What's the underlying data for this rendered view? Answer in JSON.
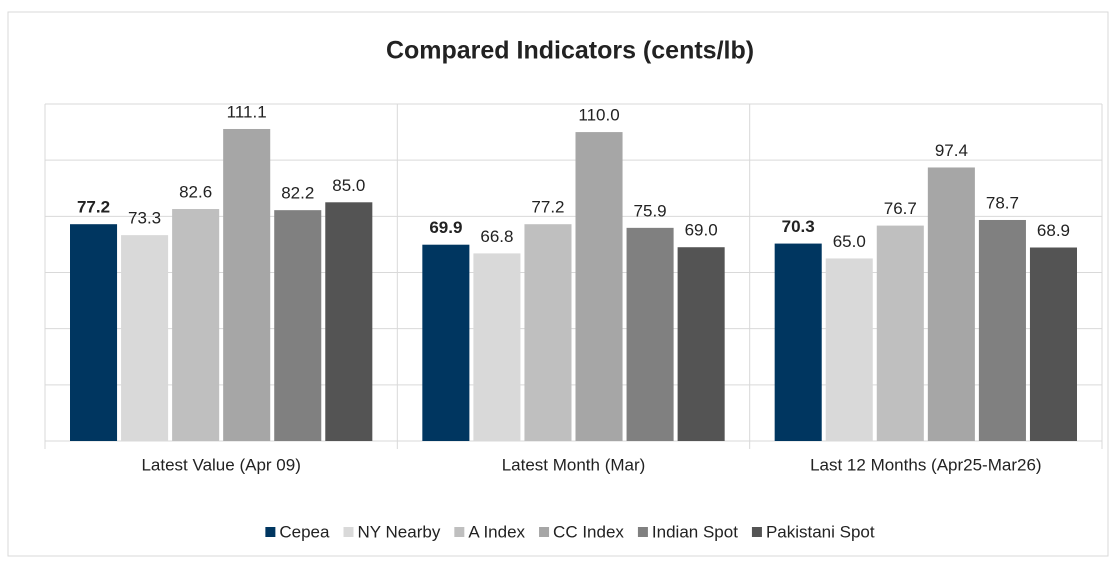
{
  "chart_data": {
    "type": "bar",
    "title": "Compared Indicators (cents/lb)",
    "categories": [
      "Latest Value (Apr 09)",
      "Latest Month (Mar)",
      "Last 12 Months (Apr25-Mar26)"
    ],
    "series": [
      {
        "name": "Cepea",
        "color": "#003660",
        "bold": true,
        "values": [
          77.2,
          69.9,
          70.3
        ],
        "value_labels": [
          "77.2",
          "69.9",
          "70.3"
        ]
      },
      {
        "name": "NY Nearby",
        "color": "#d9d9d9",
        "values": [
          73.3,
          66.8,
          65.0
        ],
        "value_labels": [
          "73.3",
          "66.8",
          "65.0"
        ]
      },
      {
        "name": "A Index",
        "color": "#bfbfbf",
        "values": [
          82.6,
          77.2,
          76.7
        ],
        "value_labels": [
          "82.6",
          "77.2",
          "76.7"
        ]
      },
      {
        "name": "CC Index",
        "color": "#a6a6a6",
        "values": [
          111.1,
          110.0,
          97.4
        ],
        "value_labels": [
          "111.1",
          "110.0",
          "97.4"
        ]
      },
      {
        "name": "Indian Spot",
        "color": "#808080",
        "values": [
          82.2,
          75.9,
          78.7
        ],
        "value_labels": [
          "82.2",
          "75.9",
          "78.7"
        ]
      },
      {
        "name": "Pakistani Spot",
        "color": "#545454",
        "values": [
          85.0,
          69.0,
          68.9
        ],
        "value_labels": [
          "85.0",
          "69.0",
          "68.9"
        ]
      }
    ],
    "ylim": [
      0,
      120
    ],
    "yticks": [
      0,
      20,
      40,
      60,
      80,
      100,
      120
    ],
    "grid": true,
    "legend": "bottom"
  }
}
